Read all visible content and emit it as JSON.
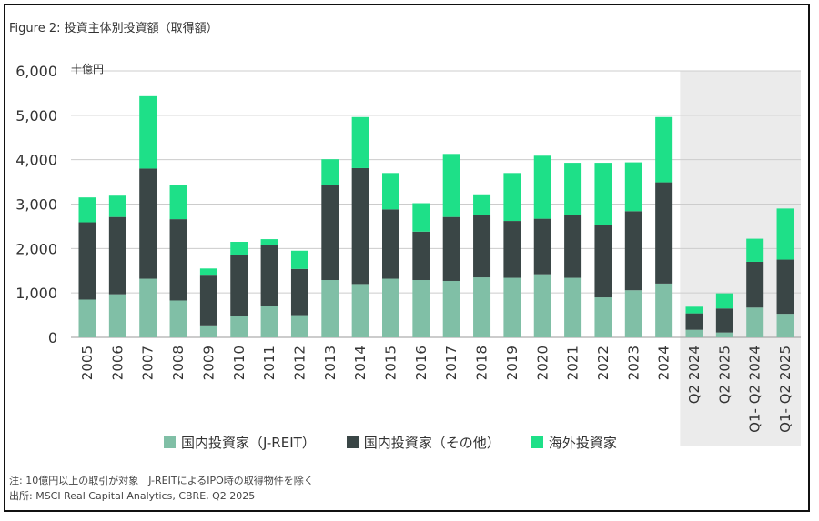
{
  "figure_title": "Figure 2: 投資主体別投資額（取得額）",
  "unit_label": "十億円",
  "notes": {
    "note": "注: 10億円以上の取引が対象　J-REITによるIPO時の取得物件を除く",
    "source": "出所: MSCI Real Capital Analytics, CBRE, Q2 2025"
  },
  "colors": {
    "jreit": "#80bfa6",
    "domestic_other": "#3a4646",
    "foreign": "#1ee088",
    "shade": "#ebebeb",
    "grid": "#cccccc"
  },
  "chart_data": {
    "type": "bar",
    "stacked": true,
    "title": "",
    "xlabel": "",
    "ylabel": "十億円",
    "ylim": [
      0,
      6000
    ],
    "yticks": [
      "0",
      "1,000",
      "2,000",
      "3,000",
      "4,000",
      "5,000",
      "6,000"
    ],
    "grid": true,
    "legend_position": "bottom",
    "categories": [
      "2005",
      "2006",
      "2007",
      "2008",
      "2009",
      "2010",
      "2011",
      "2012",
      "2013",
      "2014",
      "2015",
      "2016",
      "2017",
      "2018",
      "2019",
      "2020",
      "2021",
      "2022",
      "2023",
      "2024",
      "Q2 2024",
      "Q2 2025",
      "Q1- Q2 2024",
      "Q1- Q2 2025"
    ],
    "shaded_categories": [
      "Q2 2024",
      "Q2 2025",
      "Q1- Q2 2024",
      "Q1- Q2 2025"
    ],
    "series": [
      {
        "name": "国内投資家（J-REIT）",
        "color_key": "jreit",
        "values": [
          850,
          970,
          1320,
          830,
          270,
          490,
          700,
          500,
          1290,
          1200,
          1320,
          1290,
          1270,
          1350,
          1340,
          1420,
          1340,
          900,
          1060,
          1210,
          170,
          110,
          670,
          530
        ]
      },
      {
        "name": "国内投資家（その他）",
        "color_key": "domestic_other",
        "values": [
          1740,
          1740,
          2480,
          1830,
          1140,
          1370,
          1370,
          1040,
          2140,
          2610,
          1560,
          1090,
          1440,
          1400,
          1280,
          1250,
          1410,
          1630,
          1780,
          2280,
          370,
          540,
          1030,
          1220
        ]
      },
      {
        "name": "海外投資家",
        "color_key": "foreign",
        "values": [
          560,
          480,
          1630,
          770,
          140,
          290,
          140,
          410,
          580,
          1150,
          820,
          640,
          1420,
          470,
          1080,
          1420,
          1180,
          1400,
          1100,
          1470,
          150,
          340,
          520,
          1150
        ]
      }
    ]
  }
}
